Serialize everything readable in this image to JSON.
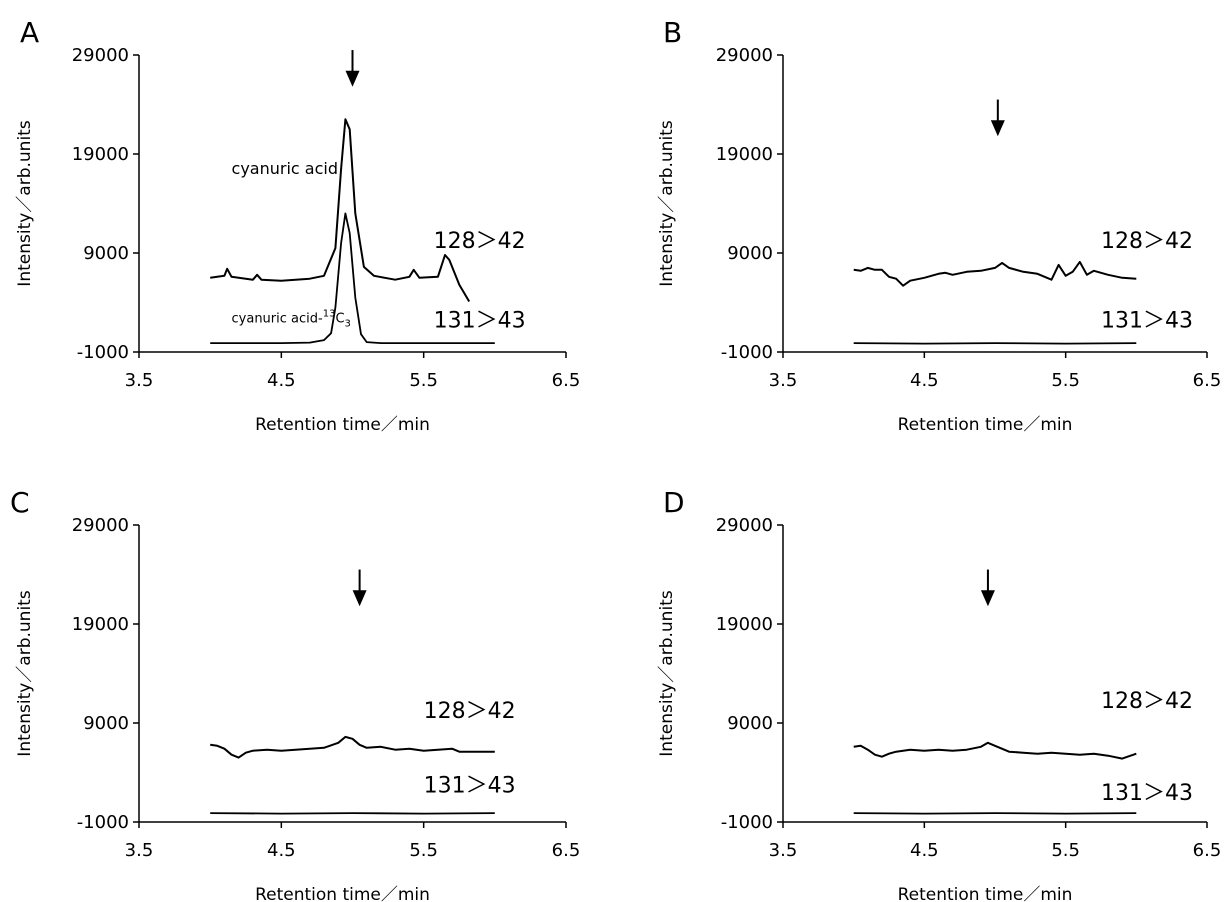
{
  "figure": {
    "panels": [
      {
        "id": "A",
        "letter": "A"
      },
      {
        "id": "B",
        "letter": "B"
      },
      {
        "id": "C",
        "letter": "C"
      },
      {
        "id": "D",
        "letter": "D"
      }
    ]
  },
  "chart_data": [
    {
      "panel": "A",
      "type": "line",
      "xlabel": "Retention time／min",
      "ylabel": "Intensity／arb.units",
      "xlim": [
        3.5,
        6.5
      ],
      "ylim": [
        -1000,
        29000
      ],
      "xticks": [
        "3.5",
        "4.5",
        "5.5",
        "6.5"
      ],
      "yticks": [
        "-1000",
        "9000",
        "19000",
        "29000"
      ],
      "arrow_x": 5.0,
      "annotations": [
        {
          "text": "cyanuric acid",
          "x": 4.15,
          "y": 17000
        },
        {
          "text": "cyanuric acid-",
          "sup": "13",
          "tail": "C",
          "sub": "3",
          "x": 4.15,
          "y": 2000
        }
      ],
      "series": [
        {
          "name": "128＞42",
          "x": [
            4.0,
            4.1,
            4.12,
            4.15,
            4.3,
            4.33,
            4.36,
            4.5,
            4.6,
            4.7,
            4.8,
            4.88,
            4.92,
            4.95,
            4.98,
            5.02,
            5.08,
            5.15,
            5.3,
            5.4,
            5.43,
            5.47,
            5.6,
            5.65,
            5.68,
            5.75,
            5.82
          ],
          "y": [
            6500,
            6700,
            7400,
            6600,
            6300,
            6800,
            6300,
            6200,
            6300,
            6400,
            6700,
            9500,
            17500,
            22500,
            21500,
            13000,
            7600,
            6700,
            6300,
            6600,
            7300,
            6500,
            6600,
            8800,
            8300,
            5800,
            4100
          ]
        },
        {
          "name": "131＞43",
          "x": [
            4.0,
            4.5,
            4.7,
            4.8,
            4.85,
            4.88,
            4.92,
            4.95,
            4.98,
            5.02,
            5.06,
            5.1,
            5.2,
            5.4,
            6.0
          ],
          "y": [
            -100,
            -100,
            -50,
            200,
            900,
            3500,
            10000,
            13000,
            11000,
            4500,
            800,
            0,
            -100,
            -100,
            -100
          ]
        }
      ],
      "trace_labels": [
        {
          "text": "128＞42",
          "x": 5.57,
          "y": 9500
        },
        {
          "text": "131＞43",
          "x": 5.57,
          "y": 1500
        }
      ]
    },
    {
      "panel": "B",
      "type": "line",
      "xlabel": "Retention time／min",
      "ylabel": "Intensity／arb.units",
      "xlim": [
        3.5,
        6.5
      ],
      "ylim": [
        -1000,
        29000
      ],
      "xticks": [
        "3.5",
        "4.5",
        "5.5",
        "6.5"
      ],
      "yticks": [
        "-1000",
        "9000",
        "19000",
        "29000"
      ],
      "arrow_x": 5.02,
      "annotations": [],
      "series": [
        {
          "name": "128＞42",
          "x": [
            4.0,
            4.05,
            4.1,
            4.15,
            4.2,
            4.25,
            4.3,
            4.35,
            4.4,
            4.5,
            4.6,
            4.65,
            4.7,
            4.8,
            4.9,
            5.0,
            5.05,
            5.1,
            5.2,
            5.3,
            5.4,
            5.45,
            5.5,
            5.55,
            5.6,
            5.65,
            5.7,
            5.8,
            5.9,
            6.0
          ],
          "y": [
            7300,
            7200,
            7500,
            7300,
            7300,
            6600,
            6400,
            5700,
            6200,
            6500,
            6900,
            7000,
            6800,
            7100,
            7200,
            7500,
            8000,
            7500,
            7100,
            6900,
            6300,
            7800,
            6700,
            7100,
            8100,
            6800,
            7200,
            6800,
            6500,
            6400
          ]
        },
        {
          "name": "131＞43",
          "x": [
            4.0,
            4.5,
            5.0,
            5.5,
            6.0
          ],
          "y": [
            -100,
            -150,
            -100,
            -150,
            -100
          ]
        }
      ],
      "trace_labels": [
        {
          "text": "128＞42",
          "x": 5.75,
          "y": 9500
        },
        {
          "text": "131＞43",
          "x": 5.75,
          "y": 1500
        }
      ]
    },
    {
      "panel": "C",
      "type": "line",
      "xlabel": "Retention time／min",
      "ylabel": "Intensity／arb.units",
      "xlim": [
        3.5,
        6.5
      ],
      "ylim": [
        -1000,
        29000
      ],
      "xticks": [
        "3.5",
        "4.5",
        "5.5",
        "6.5"
      ],
      "yticks": [
        "-1000",
        "9000",
        "19000",
        "29000"
      ],
      "arrow_x": 5.05,
      "annotations": [],
      "series": [
        {
          "name": "128＞42",
          "x": [
            4.0,
            4.05,
            4.1,
            4.15,
            4.2,
            4.25,
            4.3,
            4.4,
            4.5,
            4.6,
            4.7,
            4.8,
            4.9,
            4.95,
            5.0,
            5.05,
            5.1,
            5.2,
            5.3,
            5.4,
            5.5,
            5.6,
            5.7,
            5.75,
            6.0
          ],
          "y": [
            6800,
            6700,
            6400,
            5800,
            5500,
            6000,
            6200,
            6300,
            6200,
            6300,
            6400,
            6500,
            7000,
            7600,
            7400,
            6800,
            6500,
            6600,
            6300,
            6400,
            6200,
            6300,
            6400,
            6100,
            6100
          ]
        },
        {
          "name": "131＞43",
          "x": [
            4.0,
            4.5,
            5.0,
            5.5,
            6.0
          ],
          "y": [
            -100,
            -150,
            -100,
            -150,
            -100
          ]
        }
      ],
      "trace_labels": [
        {
          "text": "128＞42",
          "x": 5.5,
          "y": 9500
        },
        {
          "text": "131＞43",
          "x": 5.5,
          "y": 2000
        }
      ]
    },
    {
      "panel": "D",
      "type": "line",
      "xlabel": "Retention time／min",
      "ylabel": "Intensity／arb.units",
      "xlim": [
        3.5,
        6.5
      ],
      "ylim": [
        -1000,
        29000
      ],
      "xticks": [
        "3.5",
        "4.5",
        "5.5",
        "6.5"
      ],
      "yticks": [
        "-1000",
        "9000",
        "19000",
        "29000"
      ],
      "arrow_x": 4.95,
      "annotations": [],
      "series": [
        {
          "name": "128＞42",
          "x": [
            4.0,
            4.05,
            4.1,
            4.15,
            4.2,
            4.25,
            4.3,
            4.4,
            4.5,
            4.6,
            4.7,
            4.8,
            4.9,
            4.95,
            5.0,
            5.1,
            5.2,
            5.3,
            5.4,
            5.5,
            5.6,
            5.7,
            5.8,
            5.9,
            6.0
          ],
          "y": [
            6600,
            6700,
            6300,
            5800,
            5600,
            5900,
            6100,
            6300,
            6200,
            6300,
            6200,
            6300,
            6600,
            7000,
            6700,
            6100,
            6000,
            5900,
            6000,
            5900,
            5800,
            5900,
            5700,
            5400,
            5900
          ]
        },
        {
          "name": "131＞43",
          "x": [
            4.0,
            4.5,
            5.0,
            5.5,
            6.0
          ],
          "y": [
            -100,
            -150,
            -100,
            -150,
            -100
          ]
        }
      ],
      "trace_labels": [
        {
          "text": "128＞42",
          "x": 5.75,
          "y": 10500
        },
        {
          "text": "131＞43",
          "x": 5.75,
          "y": 1200
        }
      ]
    }
  ]
}
